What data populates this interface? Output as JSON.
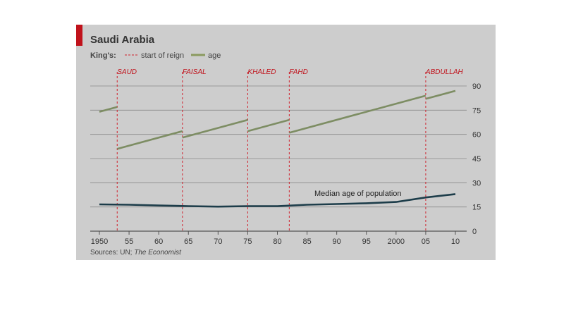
{
  "chart_data": {
    "type": "line",
    "title": "Saudi Arabia",
    "legend": {
      "prefix": "King's:",
      "items": [
        {
          "label": "start of reign",
          "style": "dashed-red"
        },
        {
          "label": "age",
          "style": "solid-green"
        }
      ],
      "placement": "top-left"
    },
    "xlim": [
      1948,
      2011
    ],
    "ylim": [
      0,
      90
    ],
    "x_ticks": [
      1950,
      1955,
      1960,
      1965,
      1970,
      1975,
      1980,
      1985,
      1990,
      1995,
      2000,
      2005,
      2010
    ],
    "x_tick_labels": [
      "1950",
      "55",
      "60",
      "65",
      "70",
      "75",
      "80",
      "85",
      "90",
      "95",
      "2000",
      "05",
      "10"
    ],
    "y_ticks": [
      0,
      15,
      30,
      45,
      60,
      75,
      90
    ],
    "y_tick_labels": [
      "0",
      "15",
      "30",
      "45",
      "60",
      "75",
      "90"
    ],
    "y_axis_side": "right",
    "grid": "horizontal",
    "reigns": [
      {
        "king": "SAUD",
        "start": 1953
      },
      {
        "king": "FAISAL",
        "start": 1964
      },
      {
        "king": "KHALED",
        "start": 1975
      },
      {
        "king": "FAHD",
        "start": 1982
      },
      {
        "king": "ABDULLAH",
        "start": 2005
      }
    ],
    "king_age_segments": [
      {
        "points": [
          [
            1950,
            74
          ],
          [
            1953,
            77
          ]
        ]
      },
      {
        "points": [
          [
            1953,
            51
          ],
          [
            1964,
            62
          ]
        ]
      },
      {
        "points": [
          [
            1964,
            58
          ],
          [
            1975,
            69
          ]
        ]
      },
      {
        "points": [
          [
            1975,
            62
          ],
          [
            1982,
            69
          ]
        ]
      },
      {
        "points": [
          [
            1982,
            61
          ],
          [
            2005,
            84
          ]
        ]
      },
      {
        "points": [
          [
            2005,
            82
          ],
          [
            2010,
            87
          ]
        ]
      }
    ],
    "series": [
      {
        "name": "Median age of population",
        "x": [
          1950,
          1955,
          1960,
          1965,
          1970,
          1975,
          1980,
          1985,
          1990,
          1995,
          2000,
          2005,
          2010
        ],
        "values": [
          16.6,
          16.4,
          15.9,
          15.5,
          15.2,
          15.5,
          15.5,
          16.4,
          16.8,
          17.3,
          18.1,
          20.9,
          23.0
        ]
      }
    ],
    "source": "Sources: UN; ",
    "source_italic": "The Economist"
  }
}
